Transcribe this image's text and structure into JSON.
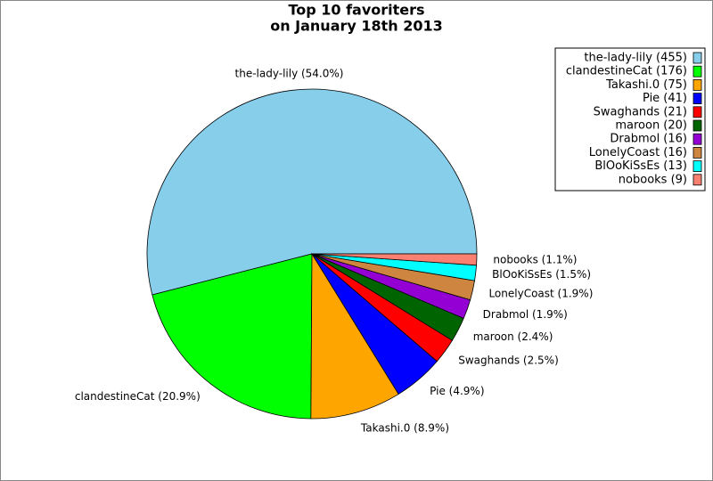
{
  "chart_data": {
    "type": "pie",
    "title": "Top 10 favoriters",
    "subtitle": "on January 18th 2013",
    "values": [
      54.0,
      20.9,
      8.9,
      4.9,
      2.5,
      2.4,
      1.9,
      1.9,
      1.5,
      1.1
    ],
    "value_labels": [
      "the-lady-lily (54.0%)",
      "clandestineCat (20.9%)",
      "Takashi.0 (8.9%)",
      "Pie (4.9%)",
      "Swaghands (2.5%)",
      "maroon (2.4%)",
      "Drabmol (1.9%)",
      "LonelyCoast (1.9%)",
      "BlOoKiSsEs (1.5%)",
      "nobooks (1.1%)"
    ],
    "legend_labels": [
      "the-lady-lily (455)",
      "clandestineCat (176)",
      "Takashi.0 (75)",
      "Pie (41)",
      "Swaghands (21)",
      "maroon (20)",
      "Drabmol (16)",
      "LonelyCoast (16)",
      "BlOoKiSsEs (13)",
      "nobooks (9)"
    ],
    "colors": [
      "#87ceeb",
      "#00ff00",
      "#ffa500",
      "#0000ff",
      "#ff0000",
      "#006400",
      "#9400d3",
      "#cd853f",
      "#00ffff",
      "#fa8072"
    ],
    "legend": "upper right"
  }
}
